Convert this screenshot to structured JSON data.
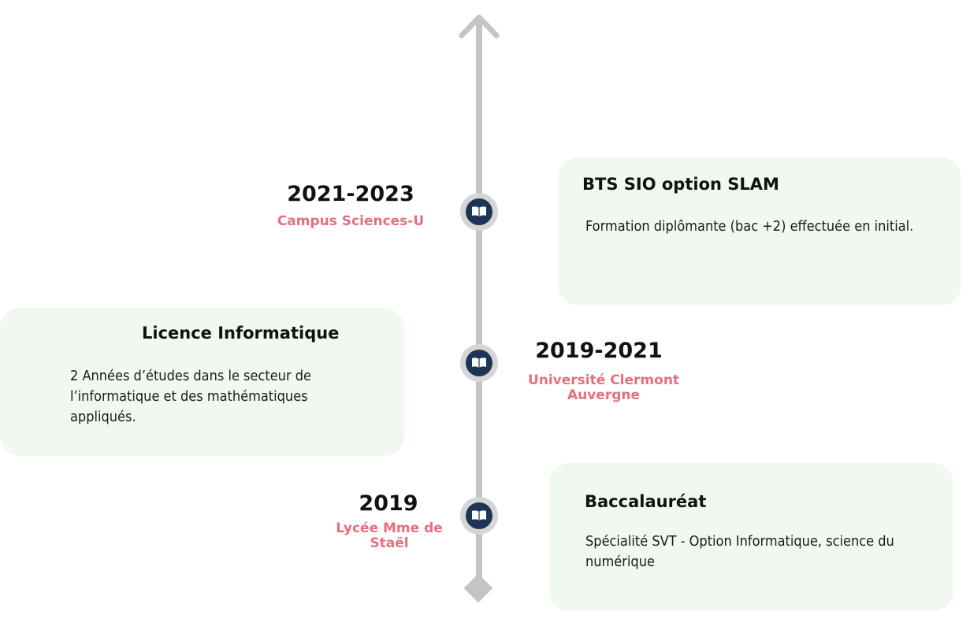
{
  "colors": {
    "axis": "#c4c4c4",
    "node_ring": "#d6d6d6",
    "node_fill": "#1f3557",
    "place_text": "#e56f7d",
    "card_bg": "#f0f8ef"
  },
  "axis": {
    "top_marker_icon": "arrow-up-icon",
    "bottom_marker_icon": "diamond-icon"
  },
  "timeline": [
    {
      "date": "2021-2023",
      "place": "Campus Sciences-U",
      "node_icon": "book-icon",
      "title": "BTS SIO option SLAM",
      "description": "Formation diplômante (bac +2) effectuée en initial."
    },
    {
      "date": "2019-2021",
      "place": "Université Clermont Auvergne",
      "node_icon": "book-icon",
      "title": "Licence Informatique",
      "description": "2 Années d’études dans le secteur de l’informatique et des mathématiques appliqués."
    },
    {
      "date": "2019",
      "place": "Lycée Mme de Staël",
      "node_icon": "book-icon",
      "title": "Baccalauréat",
      "description": "Spécialité SVT - Option Informatique, science du numérique"
    }
  ]
}
